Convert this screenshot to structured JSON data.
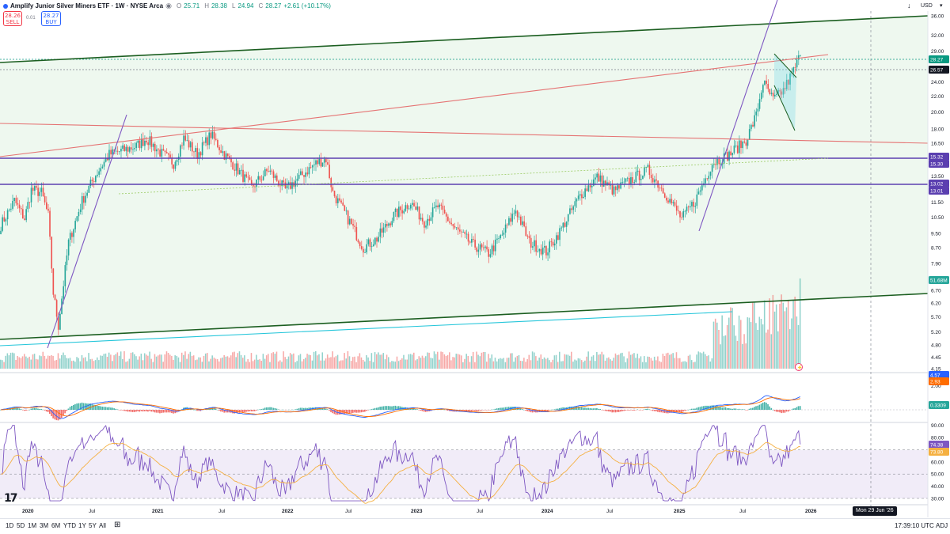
{
  "legend": {
    "title": "Amplify Junior Silver Miners ETF · 1W · NYSE Arca",
    "o_label": "O",
    "o_value": "25.71",
    "h_label": "H",
    "h_value": "28.38",
    "l_label": "L",
    "l_value": "24.94",
    "c_label": "C",
    "c_value": "28.27",
    "change": "+2.61 (+10.17%)"
  },
  "trade": {
    "sell_price": "28.26",
    "sell_label": "SELL",
    "buy_price": "28.27",
    "buy_label": "BUY",
    "spread": "0.01"
  },
  "topbar": {
    "currency": "USD"
  },
  "price_axis": {
    "ticks": [
      "36.00",
      "32.00",
      "29.00",
      "26.00",
      "24.00",
      "22.00",
      "20.00",
      "18.00",
      "16.50",
      "15.00",
      "13.50",
      "12.50",
      "11.50",
      "10.50",
      "9.50",
      "8.70",
      "7.90",
      "6.70",
      "6.20",
      "5.70",
      "5.20",
      "4.80",
      "4.45",
      "4.15"
    ],
    "badges": [
      {
        "text": "28.27",
        "color": "#089981"
      },
      {
        "text": "26.57",
        "color": "#131722"
      },
      {
        "text": "15.32",
        "color": "#5b3fb0"
      },
      {
        "text": "15.30",
        "color": "#5b3fb0"
      },
      {
        "text": "13.02",
        "color": "#5b3fb0"
      },
      {
        "text": "13.01",
        "color": "#5b3fb0"
      },
      {
        "text": "51.68M",
        "color": "#26a69a"
      }
    ]
  },
  "macd_axis": {
    "ticks": [
      "2.00"
    ],
    "badges": [
      {
        "text": "4.57",
        "color": "#2962ff"
      },
      {
        "text": "2.93",
        "color": "#ff6d00"
      },
      {
        "text": "0.3309",
        "color": "#26a69a"
      }
    ]
  },
  "rsi_axis": {
    "ticks": [
      "90.00",
      "80.00",
      "60.00",
      "50.00",
      "40.00",
      "30.00"
    ],
    "badges": [
      {
        "text": "74.38",
        "color": "#7e57c2"
      },
      {
        "text": "73.80",
        "color": "#f5b041"
      }
    ]
  },
  "time_axis": {
    "labels": [
      "2020",
      "Jul",
      "2021",
      "Jul",
      "2022",
      "Jul",
      "2023",
      "Jul",
      "2024",
      "Jul",
      "2025",
      "Jul",
      "2026"
    ],
    "hover_date": "Mon 29 Jun '26"
  },
  "bottombar": {
    "timeframes": [
      "1D",
      "5D",
      "1M",
      "3M",
      "6M",
      "YTD",
      "1Y",
      "5Y",
      "All"
    ],
    "time": "17:39:10 UTC",
    "adj": "ADJ"
  },
  "colors": {
    "up": "#26a69a",
    "down": "#ef5350",
    "channel_green": "#1b5e20",
    "red_line": "#e57373",
    "purple": "#7e57c2",
    "hline_purple": "#5b3fb0",
    "cyan": "#26c6da"
  }
}
